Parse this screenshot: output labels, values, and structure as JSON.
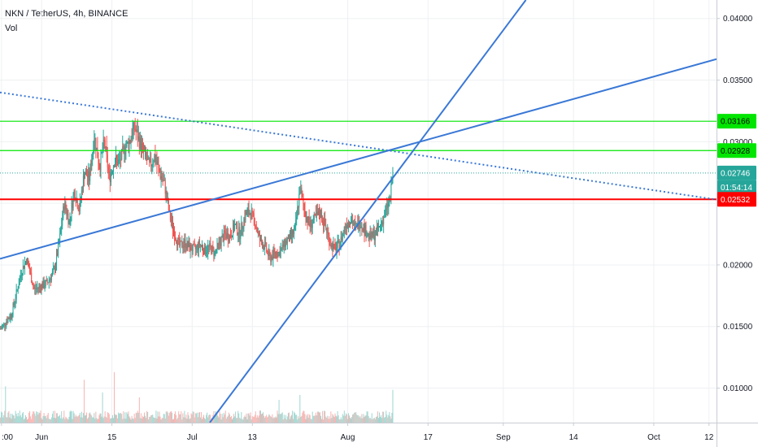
{
  "header": {
    "symbol_line": "NKN / TetherUS, 4h, BINANCE",
    "indicator": "Vol"
  },
  "chart_data": {
    "type": "candlestick",
    "symbol": "NKN / TetherUS",
    "interval": "4h",
    "exchange": "BINANCE",
    "y_ticks": [
      "0.04000",
      "0.03500",
      "0.03000",
      "0.02500",
      "0.02000",
      "0.01500",
      "0.01000"
    ],
    "y_tick_values": [
      0.04,
      0.035,
      0.03,
      0.025,
      0.02,
      0.015,
      0.01
    ],
    "ylim": [
      0.0072,
      0.0415
    ],
    "x_ticks": [
      ":00",
      "Jun",
      "15",
      "Jul",
      "13",
      "Aug",
      "17",
      "Sep",
      "14",
      "Oct",
      "12"
    ],
    "x_tick_days": [
      -8,
      0,
      14,
      30,
      42,
      61,
      77,
      92,
      106,
      122,
      133
    ],
    "xlim_days": [
      -8.3,
      134.5
    ],
    "last_bar_day": 70,
    "price_tags": [
      {
        "label": "0.03166",
        "value": 0.03166,
        "color": "#00e600",
        "text_color": "#000000"
      },
      {
        "label": "0.02928",
        "value": 0.02928,
        "color": "#00e600",
        "text_color": "#000000"
      },
      {
        "label": "0.02746",
        "value": 0.02746,
        "color": "#26a69a",
        "text_color": "#ffffff"
      },
      {
        "label": "01:54:14",
        "value": 0.02628,
        "color": "#26a69a",
        "text_color": "#ffffff"
      },
      {
        "label": "0.02532",
        "value": 0.02532,
        "color": "#ff0000",
        "text_color": "#ffffff"
      }
    ],
    "horizontal_levels": [
      {
        "value": 0.03166,
        "color": "#00e600",
        "style": "solid"
      },
      {
        "value": 0.02928,
        "color": "#00e600",
        "style": "solid"
      },
      {
        "value": 0.02746,
        "color": "#26a69a",
        "style": "dotted"
      },
      {
        "value": 0.02532,
        "color": "#ff0000",
        "style": "solid"
      }
    ],
    "trend_lines": [
      {
        "name": "",
        "style": "dotted",
        "color": "#3a78d6",
        "points": [
          [
            -8.3,
            0.034
          ],
          [
            134.5,
            0.0253
          ]
        ]
      },
      {
        "name": "",
        "style": "solid",
        "color": "#3a78d6",
        "points": [
          [
            -8.3,
            0.0205
          ],
          [
            134.5,
            0.0367
          ]
        ]
      },
      {
        "name": "",
        "style": "solid",
        "color": "#3a78d6",
        "points": [
          [
            33.5,
            0.0072
          ],
          [
            96.5,
            0.0415
          ]
        ]
      }
    ],
    "price_path": [
      [
        -8.2,
        0.0148
      ],
      [
        -6,
        0.016
      ],
      [
        -4,
        0.0195
      ],
      [
        -3,
        0.0205
      ],
      [
        -1.5,
        0.018
      ],
      [
        1,
        0.0185
      ],
      [
        2.5,
        0.0195
      ],
      [
        3.5,
        0.0218
      ],
      [
        4.5,
        0.025
      ],
      [
        5.5,
        0.0235
      ],
      [
        6.5,
        0.026
      ],
      [
        7.5,
        0.0245
      ],
      [
        8.5,
        0.0275
      ],
      [
        9.5,
        0.027
      ],
      [
        10.5,
        0.0305
      ],
      [
        11.5,
        0.028
      ],
      [
        12.5,
        0.03
      ],
      [
        13.5,
        0.027
      ],
      [
        14.5,
        0.0285
      ],
      [
        15.5,
        0.0283
      ],
      [
        16.5,
        0.0295
      ],
      [
        17.5,
        0.03
      ],
      [
        18.5,
        0.0312
      ],
      [
        19.5,
        0.03
      ],
      [
        20.5,
        0.029
      ],
      [
        21.5,
        0.028
      ],
      [
        22.5,
        0.0288
      ],
      [
        23.5,
        0.0275
      ],
      [
        24.5,
        0.0265
      ],
      [
        25.5,
        0.024
      ],
      [
        26.5,
        0.0225
      ],
      [
        27.5,
        0.0215
      ],
      [
        28.5,
        0.0218
      ],
      [
        29.5,
        0.0214
      ],
      [
        30.5,
        0.0212
      ],
      [
        31.5,
        0.0217
      ],
      [
        32.5,
        0.0212
      ],
      [
        33.5,
        0.0214
      ],
      [
        34.5,
        0.021
      ],
      [
        35.5,
        0.0218
      ],
      [
        36.5,
        0.0225
      ],
      [
        37.5,
        0.0223
      ],
      [
        38.5,
        0.0232
      ],
      [
        39.5,
        0.0225
      ],
      [
        40.5,
        0.024
      ],
      [
        41.5,
        0.0243
      ],
      [
        42.5,
        0.0235
      ],
      [
        43.5,
        0.022
      ],
      [
        44.5,
        0.0215
      ],
      [
        45.5,
        0.0205
      ],
      [
        46.5,
        0.021
      ],
      [
        47.5,
        0.021
      ],
      [
        48.5,
        0.0218
      ],
      [
        49.5,
        0.0222
      ],
      [
        50.5,
        0.0228
      ],
      [
        51.5,
        0.0262
      ],
      [
        52.5,
        0.0242
      ],
      [
        53.5,
        0.0232
      ],
      [
        54.5,
        0.0238
      ],
      [
        55.5,
        0.0242
      ],
      [
        56.5,
        0.0232
      ],
      [
        57.5,
        0.0218
      ],
      [
        58.5,
        0.0212
      ],
      [
        59.5,
        0.0218
      ],
      [
        60.5,
        0.0232
      ],
      [
        61.5,
        0.0238
      ],
      [
        62.5,
        0.023
      ],
      [
        63.5,
        0.0235
      ],
      [
        64.5,
        0.0228
      ],
      [
        65.5,
        0.0222
      ],
      [
        66.5,
        0.0225
      ],
      [
        67.5,
        0.0232
      ],
      [
        68.5,
        0.0242
      ],
      [
        69.5,
        0.0255
      ],
      [
        70,
        0.0275
      ]
    ],
    "volume_ylim": [
      0,
      1.0
    ],
    "volume_spikes": [
      {
        "day": -7.2,
        "volume": 0.72
      },
      {
        "day": 8.5,
        "volume": 0.85
      },
      {
        "day": 12.2,
        "volume": 0.6
      },
      {
        "day": 14.5,
        "volume": 1.0
      },
      {
        "day": 19.5,
        "volume": 0.5
      },
      {
        "day": 47.3,
        "volume": 0.45
      },
      {
        "day": 51.5,
        "volume": 0.55
      },
      {
        "day": 70,
        "volume": 0.65
      }
    ],
    "colors": {
      "up": "#26a69a",
      "down": "#ef5350",
      "volume_up": "#9fd6d0",
      "volume_down": "#f7b4b2",
      "grid": "#eef0f3",
      "axis_line": "#c8ccd4",
      "background": "#ffffff"
    }
  }
}
